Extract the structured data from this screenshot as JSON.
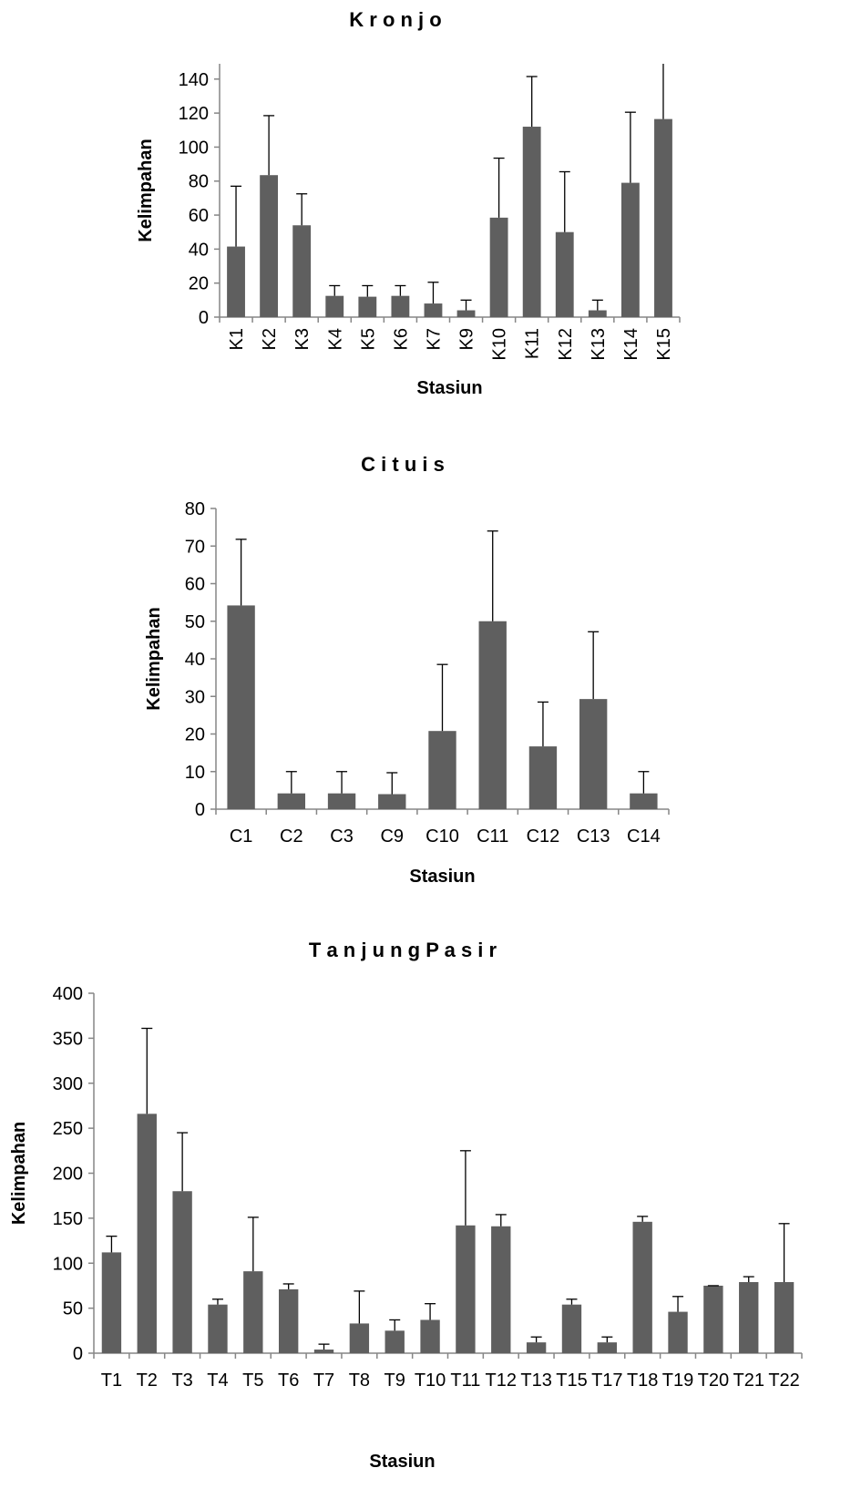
{
  "chart_data": [
    {
      "type": "bar",
      "title": "K r o n j o",
      "xlabel": "Stasiun",
      "ylabel": "Kelimpahan",
      "ylim": [
        0,
        150
      ],
      "yticks": [
        "0",
        "20",
        "40",
        "60",
        "80",
        "100",
        "120",
        "140"
      ],
      "tick_rotation": "vertical",
      "categories": [
        "K1",
        "K2",
        "K3",
        "K4",
        "K5",
        "K6",
        "K7",
        "K9",
        "K10",
        "K11",
        "K12",
        "K13",
        "K14",
        "K15"
      ],
      "values": [
        41.5,
        83.5,
        54,
        12.5,
        12,
        12.5,
        8,
        4,
        58.5,
        112,
        50,
        4,
        79,
        116.5
      ],
      "error_plus": [
        35.5,
        35,
        18.5,
        6,
        6.5,
        6,
        12.5,
        6,
        35,
        29.5,
        35.5,
        6,
        41.5,
        34
      ]
    },
    {
      "type": "bar",
      "title": "C i t u i s",
      "xlabel": "Stasiun",
      "ylabel": "Kelimpahan",
      "ylim": [
        0,
        80
      ],
      "yticks": [
        "0",
        "10",
        "20",
        "30",
        "40",
        "50",
        "60",
        "70",
        "80"
      ],
      "tick_rotation": "horizontal",
      "categories": [
        "C1",
        "C2",
        "C3",
        "C9",
        "C10",
        "C11",
        "C12",
        "C13",
        "C14"
      ],
      "values": [
        54.2,
        4.2,
        4.2,
        4.0,
        20.8,
        50,
        16.7,
        29.3,
        4.2
      ],
      "error_plus": [
        17.6,
        5.8,
        5.8,
        5.7,
        17.7,
        24,
        11.8,
        17.9,
        5.8
      ]
    },
    {
      "type": "bar",
      "title": "T a n j u n g   P a s  i r",
      "xlabel": "Stasiun",
      "ylabel": "Kelimpahan",
      "ylim": [
        0,
        400
      ],
      "yticks": [
        "0",
        "50",
        "100",
        "150",
        "200",
        "250",
        "300",
        "350",
        "400"
      ],
      "tick_rotation": "horizontal",
      "categories": [
        "T1",
        "T2",
        "T3",
        "T4",
        "T5",
        "T6",
        "T7",
        "T8",
        "T9",
        "T10",
        "T11",
        "T12",
        "T13",
        "T15",
        "T17",
        "T18",
        "T19",
        "T20",
        "T21",
        "T22"
      ],
      "values": [
        112,
        266,
        180,
        54,
        91,
        71,
        4,
        33,
        25,
        37,
        142,
        141,
        12,
        54,
        12,
        146,
        46,
        75,
        79,
        79
      ],
      "error_plus": [
        18,
        95,
        65,
        6,
        60,
        6,
        6,
        36,
        12,
        18,
        83,
        13,
        6,
        6,
        6,
        6,
        17,
        0,
        6,
        65
      ]
    }
  ]
}
